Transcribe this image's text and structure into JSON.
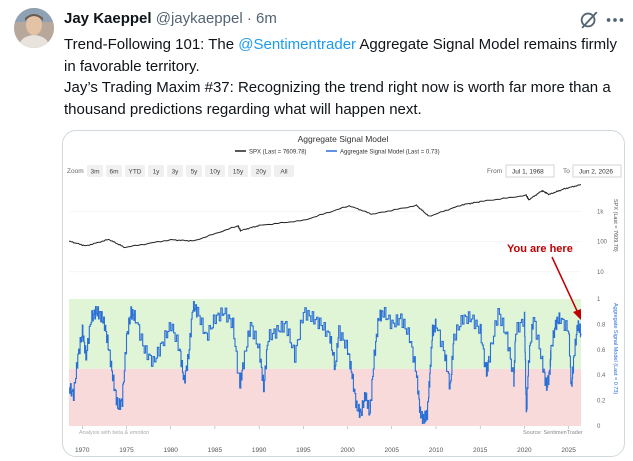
{
  "author": {
    "name": "Jay Kaeppel",
    "handle": "@jaykaeppel",
    "separator": "·",
    "time": "6m",
    "avatar_icon": "user-avatar"
  },
  "tweet": {
    "line1_before": "Trend-Following 101: The ",
    "line1_mention": "@Sentimentrader",
    "line1_after": " Aggregate Signal Model remains firmly in favorable territory.",
    "line2": "Jay’s Trading Maxim #37: Recognizing the trend right now is worth far more than a thousand predictions regarding what will happen next."
  },
  "icons": {
    "grok": "grok-icon",
    "more": "more-icon"
  },
  "colors": {
    "mention": "#1d9bf0",
    "spx_line": "#222222",
    "signal_line": "#2a6fd6",
    "favorable_zone": "#dff5d6",
    "unfavorable_zone": "#f9dada",
    "annotation": "#c00000"
  },
  "chart": {
    "title": "Aggregate Signal Model",
    "legend_spx": "SPX (Last = 7609.78)",
    "legend_signal": "Aggregate Signal Model (Last = 0.73)",
    "zoom_label": "Zoom",
    "zoom_buttons": [
      "3m",
      "6m",
      "YTD",
      "1y",
      "3y",
      "5y",
      "10y",
      "15y",
      "20y",
      "All"
    ],
    "from_label": "From",
    "from_value": "Jul 1, 1968",
    "to_label": "To",
    "to_value": "Jun 2, 2026",
    "annotation": "You are here",
    "source": "Source: SentimenTrader",
    "watermark": "Analysis with beta & emotion",
    "upper_axis_title": "SPX (Last = 7609.78)",
    "lower_axis_title": "Aggregate Signal Model (Last = 0.73)"
  },
  "chart_data": [
    {
      "type": "line",
      "title": "Aggregate Signal Model",
      "series": [
        {
          "name": "SPX (Last = 7609.78)"
        }
      ],
      "yscale": "log",
      "y_tick_labels": [
        "10",
        "100",
        "1k"
      ],
      "ylim": [
        5,
        10000
      ],
      "xlim": [
        1968.5,
        2026.4
      ],
      "x_tick_labels": [
        "1970",
        "1975",
        "1980",
        "1985",
        "1990",
        "1995",
        "2000",
        "2005",
        "2010",
        "2015",
        "2020",
        "2025"
      ],
      "x": [
        1968.5,
        1970.4,
        1973.0,
        1974.8,
        1980.0,
        1982.6,
        1987.6,
        1987.9,
        1990.0,
        1995.0,
        2000.2,
        2002.8,
        2007.8,
        2009.2,
        2013.0,
        2015.0,
        2020.2,
        2020.5,
        2022.0,
        2022.8,
        2024.5,
        2026.4
      ],
      "y": [
        103,
        72,
        118,
        64,
        115,
        105,
        330,
        230,
        340,
        500,
        1520,
        800,
        1560,
        680,
        1650,
        2080,
        3350,
        2400,
        4790,
        3600,
        5500,
        7609.78
      ]
    },
    {
      "type": "line",
      "title": "",
      "series": [
        {
          "name": "Aggregate Signal Model (Last = 0.73)"
        }
      ],
      "ylim": [
        0,
        1
      ],
      "y_tick_labels": [
        "0",
        "0.2",
        "0.4",
        "0.6",
        "0.8",
        "1"
      ],
      "bands": [
        {
          "from": 0.45,
          "to": 1.0,
          "label": "favorable"
        },
        {
          "from": 0,
          "to": 0.45,
          "label": "unfavorable"
        }
      ],
      "x": [
        1968.5,
        1969.0,
        1969.5,
        1970.0,
        1970.4,
        1971.0,
        1971.5,
        1972.0,
        1972.5,
        1973.0,
        1973.5,
        1974.0,
        1974.5,
        1975.0,
        1975.5,
        1976.0,
        1977.0,
        1978.0,
        1979.0,
        1980.0,
        1981.0,
        1981.5,
        1982.0,
        1982.5,
        1983.0,
        1984.0,
        1985.0,
        1986.0,
        1987.0,
        1987.8,
        1988.2,
        1989.0,
        1990.0,
        1990.5,
        1991.0,
        1992.0,
        1993.0,
        1994.0,
        1995.0,
        1996.0,
        1997.0,
        1998.0,
        1998.6,
        1999.0,
        2000.0,
        2000.5,
        2001.0,
        2001.5,
        2002.0,
        2002.5,
        2003.0,
        2003.5,
        2004.0,
        2005.0,
        2006.0,
        2007.0,
        2007.8,
        2008.2,
        2008.6,
        2009.0,
        2009.3,
        2009.6,
        2010.0,
        2011.0,
        2011.6,
        2012.0,
        2013.0,
        2014.0,
        2015.0,
        2015.7,
        2016.0,
        2017.0,
        2018.0,
        2018.8,
        2019.0,
        2020.0,
        2020.2,
        2020.5,
        2021.0,
        2022.0,
        2022.5,
        2022.9,
        2023.0,
        2023.5,
        2024.0,
        2025.0,
        2025.3,
        2025.6,
        2026.0,
        2026.4
      ],
      "y": [
        0.3,
        0.25,
        0.55,
        0.75,
        0.55,
        0.85,
        0.9,
        0.88,
        0.8,
        0.6,
        0.35,
        0.15,
        0.2,
        0.7,
        0.9,
        0.85,
        0.6,
        0.5,
        0.65,
        0.8,
        0.6,
        0.35,
        0.55,
        0.95,
        0.9,
        0.7,
        0.85,
        0.9,
        0.8,
        0.3,
        0.5,
        0.8,
        0.6,
        0.3,
        0.7,
        0.75,
        0.8,
        0.55,
        0.9,
        0.85,
        0.8,
        0.7,
        0.45,
        0.75,
        0.6,
        0.4,
        0.15,
        0.1,
        0.25,
        0.1,
        0.55,
        0.85,
        0.9,
        0.8,
        0.85,
        0.7,
        0.4,
        0.1,
        0.05,
        0.1,
        0.4,
        0.75,
        0.8,
        0.55,
        0.3,
        0.7,
        0.85,
        0.85,
        0.75,
        0.4,
        0.55,
        0.9,
        0.7,
        0.35,
        0.75,
        0.85,
        0.1,
        0.55,
        0.85,
        0.5,
        0.3,
        0.45,
        0.6,
        0.8,
        0.85,
        0.75,
        0.3,
        0.55,
        0.8,
        0.73
      ]
    }
  ]
}
